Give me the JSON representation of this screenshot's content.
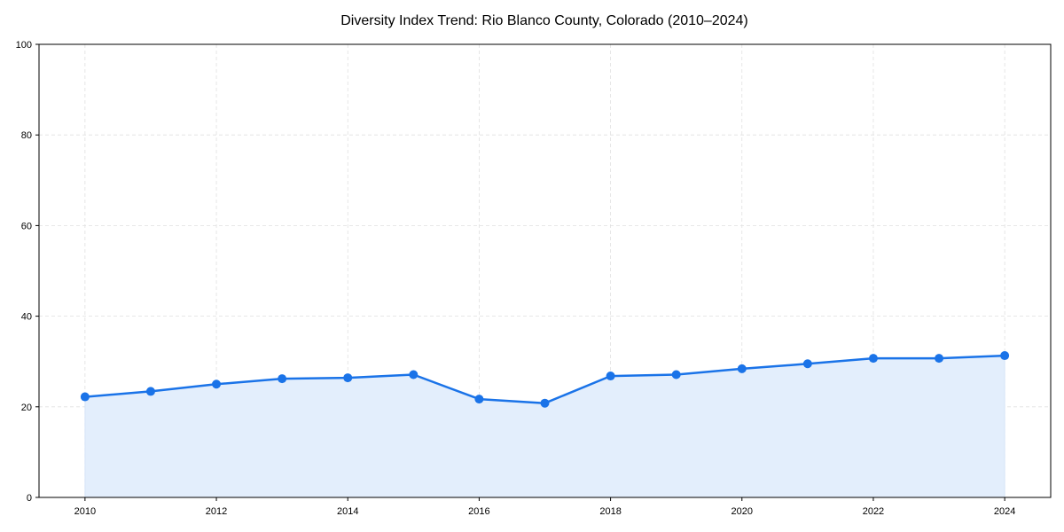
{
  "chart_data": {
    "type": "line",
    "title": "Diversity Index Trend: Rio Blanco County, Colorado (2010–2024)",
    "xlabel": "",
    "ylabel": "",
    "x": [
      2010,
      2011,
      2012,
      2013,
      2014,
      2015,
      2016,
      2017,
      2018,
      2019,
      2020,
      2021,
      2022,
      2023,
      2024
    ],
    "series": [
      {
        "name": "Diversity Index",
        "values": [
          22.2,
          23.4,
          25.0,
          26.2,
          26.4,
          27.1,
          21.7,
          20.8,
          26.8,
          27.1,
          28.4,
          29.5,
          30.7,
          30.7,
          31.3
        ],
        "color": "#1a73e8",
        "fill": true,
        "fill_color": "#e3eefc",
        "marker": "circle"
      }
    ],
    "xlim": [
      2009.3,
      2024.7
    ],
    "ylim": [
      0,
      100
    ],
    "xticks": [
      "2010",
      "2012",
      "2014",
      "2016",
      "2018",
      "2020",
      "2022",
      "2024"
    ],
    "yticks": [
      "0",
      "20",
      "40",
      "60",
      "80",
      "100"
    ],
    "grid": true,
    "legend": null
  }
}
